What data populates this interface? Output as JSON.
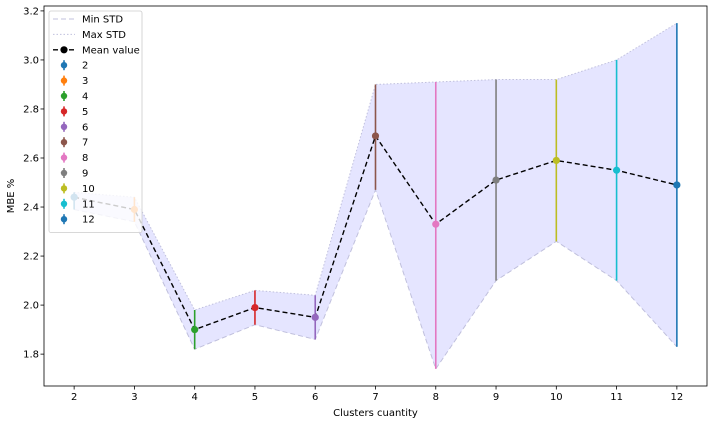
{
  "chart_data": {
    "type": "line",
    "title": "",
    "xlabel": "Clusters cuantity",
    "ylabel": "MBE %",
    "x": [
      2,
      3,
      4,
      5,
      6,
      7,
      8,
      9,
      10,
      11,
      12
    ],
    "xlim": [
      1.5,
      12.5
    ],
    "ylim": [
      1.67,
      3.22
    ],
    "xticks": [
      "2",
      "3",
      "4",
      "5",
      "6",
      "7",
      "8",
      "9",
      "10",
      "11",
      "12"
    ],
    "yticks": [
      "1.8",
      "2.0",
      "2.2",
      "2.4",
      "2.6",
      "2.8",
      "3.0",
      "3.2"
    ],
    "ytick_values": [
      1.8,
      2.0,
      2.2,
      2.4,
      2.6,
      2.8,
      3.0,
      3.2
    ],
    "grid": false,
    "legend_position": "top-left",
    "fill_color": "#e5e5ff",
    "series": [
      {
        "name": "Min STD",
        "style": "dashed",
        "color": "#c0c0dd",
        "values": [
          2.39,
          2.34,
          1.82,
          1.92,
          1.86,
          2.47,
          1.74,
          2.1,
          2.26,
          2.1,
          1.83
        ]
      },
      {
        "name": "Max STD",
        "style": "dotted",
        "color": "#c0c0dd",
        "values": [
          2.46,
          2.44,
          1.98,
          2.06,
          2.04,
          2.9,
          2.91,
          2.92,
          2.92,
          3.0,
          3.15
        ]
      },
      {
        "name": "Mean value",
        "style": "dashed-marker",
        "color": "#000000",
        "values": [
          2.44,
          2.39,
          1.9,
          1.99,
          1.95,
          2.69,
          2.33,
          2.51,
          2.59,
          2.55,
          2.49
        ]
      }
    ],
    "error_bars": [
      {
        "name": "2",
        "x": 2,
        "mean": 2.44,
        "low": 2.39,
        "high": 2.46,
        "color": "#1f77b4"
      },
      {
        "name": "3",
        "x": 3,
        "mean": 2.39,
        "low": 2.34,
        "high": 2.44,
        "color": "#ff7f0e"
      },
      {
        "name": "4",
        "x": 4,
        "mean": 1.9,
        "low": 1.82,
        "high": 1.98,
        "color": "#2ca02c"
      },
      {
        "name": "5",
        "x": 5,
        "mean": 1.99,
        "low": 1.92,
        "high": 2.06,
        "color": "#d62728"
      },
      {
        "name": "6",
        "x": 6,
        "mean": 1.95,
        "low": 1.86,
        "high": 2.04,
        "color": "#9467bd"
      },
      {
        "name": "7",
        "x": 7,
        "mean": 2.69,
        "low": 2.47,
        "high": 2.9,
        "color": "#8c564b"
      },
      {
        "name": "8",
        "x": 8,
        "mean": 2.33,
        "low": 1.74,
        "high": 2.91,
        "color": "#e377c2"
      },
      {
        "name": "9",
        "x": 9,
        "mean": 2.51,
        "low": 2.1,
        "high": 2.92,
        "color": "#7f7f7f"
      },
      {
        "name": "10",
        "x": 10,
        "mean": 2.59,
        "low": 2.26,
        "high": 2.92,
        "color": "#bcbd22"
      },
      {
        "name": "11",
        "x": 11,
        "mean": 2.55,
        "low": 2.1,
        "high": 3.0,
        "color": "#17becf"
      },
      {
        "name": "12",
        "x": 12,
        "mean": 2.49,
        "low": 1.83,
        "high": 3.15,
        "color": "#1f77b4"
      }
    ]
  }
}
